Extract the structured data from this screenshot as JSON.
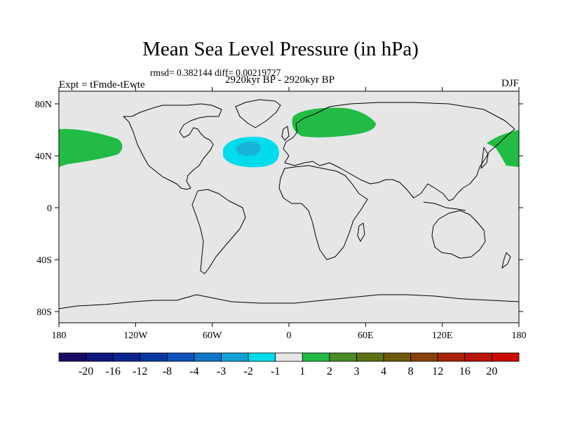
{
  "header": {
    "title": "Mean Sea Level Pressure (in hPa)",
    "stats": "rmsd= 0.382144 diff= 0.00219727",
    "expt": "Expt = tFmde-tEwte",
    "period": "2920kyr BP - 2920kyr BP",
    "season": "DJF"
  },
  "map": {
    "lat_labels": [
      "80N",
      "40N",
      "0",
      "40S",
      "80S"
    ],
    "lon_labels": [
      "180",
      "120W",
      "60W",
      "0",
      "60E",
      "120E",
      "180"
    ],
    "background_color": "#e6e6e6",
    "coastline_color": "#000000",
    "anomalies": [
      {
        "region": "North Pacific (east)",
        "sign": "positive",
        "color": "#21bb46"
      },
      {
        "region": "North Pacific (west)",
        "sign": "positive",
        "color": "#21bb46"
      },
      {
        "region": "Northern Eurasia",
        "sign": "positive",
        "color": "#21bb46"
      },
      {
        "region": "North Atlantic",
        "sign": "negative",
        "color": "#00dcec"
      },
      {
        "region": "North Atlantic core",
        "sign": "negative",
        "color": "#1ab3d8"
      }
    ]
  },
  "colorbar": {
    "labels": [
      "-20",
      "-16",
      "-12",
      "-8",
      "-4",
      "-3",
      "-2",
      "-1",
      "1",
      "2",
      "3",
      "4",
      "8",
      "12",
      "16",
      "20"
    ],
    "colors": [
      "#1a0a66",
      "#0f167d",
      "#0c2390",
      "#0938a3",
      "#0d52ba",
      "#1276c8",
      "#14a2d6",
      "#00dcec",
      "#e6e6e6",
      "#21bb46",
      "#4a8a28",
      "#5a7214",
      "#6e5a0a",
      "#8a3e08",
      "#a82406",
      "#b8140a",
      "#cc0a00"
    ]
  }
}
